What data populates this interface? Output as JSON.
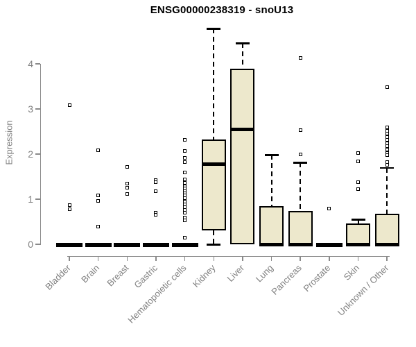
{
  "chart_data": {
    "type": "boxplot",
    "title": "ENSG00000238319 - snoU13",
    "xlabel": "",
    "ylabel": "Expression",
    "ylim": [
      0,
      4.8
    ],
    "y_ticks": [
      0,
      1,
      2,
      3,
      4
    ],
    "categories": [
      "Bladder",
      "Brain",
      "Breast",
      "Gastric",
      "Hematopoietic cells",
      "Kidney",
      "Liver",
      "Lung",
      "Pancreas",
      "Prostate",
      "Skin",
      "Unknown / Other"
    ],
    "series": [
      {
        "name": "Bladder",
        "q1": 0,
        "median": 0,
        "q3": 0,
        "whisker_low": 0,
        "whisker_high": 0,
        "outliers": [
          3.08,
          0.87,
          0.77
        ]
      },
      {
        "name": "Brain",
        "q1": 0,
        "median": 0,
        "q3": 0,
        "whisker_low": 0,
        "whisker_high": 0,
        "outliers": [
          2.09,
          1.08,
          0.96,
          0.39
        ]
      },
      {
        "name": "Breast",
        "q1": 0,
        "median": 0,
        "q3": 0,
        "whisker_low": 0,
        "whisker_high": 0,
        "outliers": [
          1.71,
          1.34,
          1.25,
          1.11
        ]
      },
      {
        "name": "Gastric",
        "q1": 0,
        "median": 0,
        "q3": 0,
        "whisker_low": 0,
        "whisker_high": 0,
        "outliers": [
          1.43,
          1.37,
          1.17,
          0.7,
          0.66
        ]
      },
      {
        "name": "Hematopoietic cells",
        "q1": 0,
        "median": 0,
        "q3": 0,
        "whisker_low": 0,
        "whisker_high": 0,
        "outliers": [
          2.31,
          2.07,
          1.91,
          1.83,
          1.6,
          1.44,
          1.36,
          1.29,
          1.24,
          1.18,
          1.13,
          1.08,
          1.02,
          0.95,
          0.89,
          0.83,
          0.76,
          0.7,
          0.6,
          0.53,
          0.14
        ]
      },
      {
        "name": "Kidney",
        "q1": 0.31,
        "median": 1.78,
        "q3": 2.33,
        "whisker_low": 0,
        "whisker_high": 4.78,
        "outliers": []
      },
      {
        "name": "Liver",
        "q1": 0,
        "median": 2.55,
        "q3": 3.9,
        "whisker_low": 0,
        "whisker_high": 4.46,
        "outliers": []
      },
      {
        "name": "Lung",
        "q1": 0,
        "median": 0,
        "q3": 0.85,
        "whisker_low": 0,
        "whisker_high": 1.98,
        "outliers": []
      },
      {
        "name": "Pancreas",
        "q1": 0,
        "median": 0,
        "q3": 0.74,
        "whisker_low": 0,
        "whisker_high": 1.81,
        "outliers": [
          4.13,
          2.53,
          2.0
        ]
      },
      {
        "name": "Prostate",
        "q1": 0,
        "median": 0,
        "q3": 0,
        "whisker_low": 0,
        "whisker_high": 0,
        "outliers": [
          0.8
        ]
      },
      {
        "name": "Skin",
        "q1": 0,
        "median": 0,
        "q3": 0.46,
        "whisker_low": 0,
        "whisker_high": 0.55,
        "outliers": [
          2.02,
          1.84,
          1.37,
          1.22
        ]
      },
      {
        "name": "Unknown / Other",
        "q1": 0,
        "median": 0,
        "q3": 0.67,
        "whisker_low": 0,
        "whisker_high": 1.7,
        "outliers": [
          3.48,
          2.6,
          2.52,
          2.45,
          2.38,
          2.31,
          2.24,
          2.17,
          2.1,
          2.03,
          1.97,
          1.83,
          1.76
        ]
      }
    ],
    "style": {
      "box_fill": "#EDE8CC",
      "box_border": "#000000",
      "median_color": "#000000",
      "whisker_color": "#000000",
      "outlier_color": "#000000",
      "axis_color": "#8A8A8A",
      "label_color": "#808080",
      "title_color": "#000000",
      "background": "#FFFFFF"
    },
    "layout_hints": {
      "grid": false,
      "legend": false,
      "x_tick_rotation": 45,
      "y_axis_side": "left"
    }
  }
}
